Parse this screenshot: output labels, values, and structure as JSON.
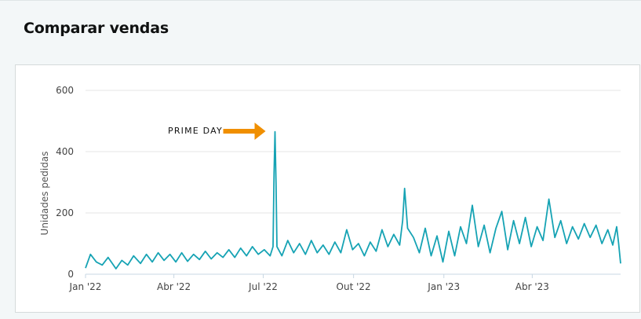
{
  "header": {
    "title": "Comparar vendas"
  },
  "chart_data": {
    "type": "line",
    "title": "",
    "xlabel": "",
    "ylabel": "Unidades pedidas",
    "ylim": [
      0,
      600
    ],
    "yticks": [
      0,
      200,
      400,
      600
    ],
    "x_tick_labels": [
      "Jan '22",
      "Abr '22",
      "Jul '22",
      "Out '22",
      "Jan '23",
      "Abr '23"
    ],
    "x_tick_dates": [
      "2022-01-01",
      "2022-04-01",
      "2022-07-01",
      "2022-10-01",
      "2023-01-01",
      "2023-04-01"
    ],
    "x_range": [
      "2022-01-01",
      "2023-06-30"
    ],
    "grid": true,
    "line_color": "#16a3b4",
    "annotation": {
      "text": "PRIME DAY",
      "arrow_color": "#f08f00",
      "target_date": "2022-07-13"
    },
    "series": [
      {
        "points": [
          [
            "2022-01-01",
            20
          ],
          [
            "2022-01-06",
            65
          ],
          [
            "2022-01-12",
            40
          ],
          [
            "2022-01-18",
            30
          ],
          [
            "2022-01-24",
            55
          ],
          [
            "2022-02-01",
            18
          ],
          [
            "2022-02-07",
            45
          ],
          [
            "2022-02-13",
            30
          ],
          [
            "2022-02-19",
            60
          ],
          [
            "2022-02-26",
            35
          ],
          [
            "2022-03-04",
            65
          ],
          [
            "2022-03-10",
            40
          ],
          [
            "2022-03-16",
            70
          ],
          [
            "2022-03-22",
            45
          ],
          [
            "2022-03-28",
            65
          ],
          [
            "2022-04-03",
            40
          ],
          [
            "2022-04-09",
            70
          ],
          [
            "2022-04-15",
            42
          ],
          [
            "2022-04-21",
            65
          ],
          [
            "2022-04-27",
            48
          ],
          [
            "2022-05-03",
            75
          ],
          [
            "2022-05-09",
            50
          ],
          [
            "2022-05-15",
            70
          ],
          [
            "2022-05-21",
            55
          ],
          [
            "2022-05-27",
            80
          ],
          [
            "2022-06-02",
            55
          ],
          [
            "2022-06-08",
            85
          ],
          [
            "2022-06-14",
            60
          ],
          [
            "2022-06-20",
            90
          ],
          [
            "2022-06-26",
            65
          ],
          [
            "2022-07-02",
            80
          ],
          [
            "2022-07-08",
            60
          ],
          [
            "2022-07-11",
            90
          ],
          [
            "2022-07-12",
            330
          ],
          [
            "2022-07-13",
            465
          ],
          [
            "2022-07-14",
            300
          ],
          [
            "2022-07-15",
            90
          ],
          [
            "2022-07-20",
            60
          ],
          [
            "2022-07-26",
            110
          ],
          [
            "2022-08-01",
            70
          ],
          [
            "2022-08-07",
            100
          ],
          [
            "2022-08-13",
            65
          ],
          [
            "2022-08-19",
            110
          ],
          [
            "2022-08-25",
            70
          ],
          [
            "2022-08-31",
            95
          ],
          [
            "2022-09-06",
            65
          ],
          [
            "2022-09-12",
            105
          ],
          [
            "2022-09-18",
            70
          ],
          [
            "2022-09-24",
            145
          ],
          [
            "2022-09-30",
            80
          ],
          [
            "2022-10-06",
            100
          ],
          [
            "2022-10-12",
            60
          ],
          [
            "2022-10-18",
            105
          ],
          [
            "2022-10-24",
            75
          ],
          [
            "2022-10-30",
            145
          ],
          [
            "2022-11-05",
            90
          ],
          [
            "2022-11-11",
            130
          ],
          [
            "2022-11-17",
            95
          ],
          [
            "2022-11-20",
            175
          ],
          [
            "2022-11-22",
            280
          ],
          [
            "2022-11-25",
            150
          ],
          [
            "2022-12-01",
            120
          ],
          [
            "2022-12-07",
            70
          ],
          [
            "2022-12-13",
            150
          ],
          [
            "2022-12-19",
            60
          ],
          [
            "2022-12-25",
            125
          ],
          [
            "2022-12-31",
            40
          ],
          [
            "2023-01-06",
            140
          ],
          [
            "2023-01-12",
            60
          ],
          [
            "2023-01-18",
            155
          ],
          [
            "2023-01-24",
            100
          ],
          [
            "2023-01-30",
            225
          ],
          [
            "2023-02-05",
            90
          ],
          [
            "2023-02-11",
            160
          ],
          [
            "2023-02-17",
            70
          ],
          [
            "2023-02-23",
            150
          ],
          [
            "2023-03-01",
            205
          ],
          [
            "2023-03-07",
            80
          ],
          [
            "2023-03-13",
            175
          ],
          [
            "2023-03-19",
            100
          ],
          [
            "2023-03-25",
            185
          ],
          [
            "2023-03-31",
            90
          ],
          [
            "2023-04-06",
            155
          ],
          [
            "2023-04-12",
            110
          ],
          [
            "2023-04-18",
            245
          ],
          [
            "2023-04-24",
            120
          ],
          [
            "2023-04-30",
            175
          ],
          [
            "2023-05-06",
            100
          ],
          [
            "2023-05-12",
            155
          ],
          [
            "2023-05-18",
            115
          ],
          [
            "2023-05-24",
            165
          ],
          [
            "2023-05-30",
            120
          ],
          [
            "2023-06-05",
            160
          ],
          [
            "2023-06-11",
            100
          ],
          [
            "2023-06-17",
            145
          ],
          [
            "2023-06-22",
            95
          ],
          [
            "2023-06-26",
            155
          ],
          [
            "2023-06-28",
            100
          ],
          [
            "2023-06-30",
            35
          ]
        ]
      }
    ]
  }
}
